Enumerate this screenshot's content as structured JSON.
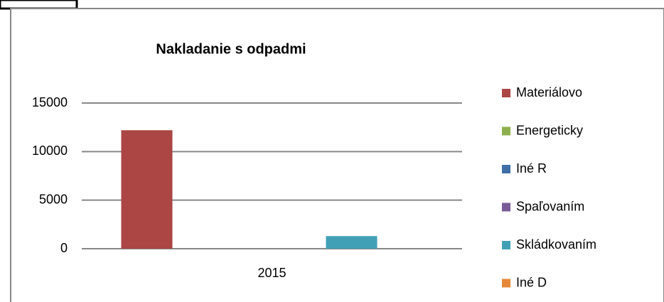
{
  "chart_data": {
    "type": "bar",
    "title": "Nakladanie s odpadmi",
    "categories": [
      "2015"
    ],
    "series": [
      {
        "name": "Materiálovo",
        "color": "#ab4644",
        "values": [
          12200
        ]
      },
      {
        "name": "Energeticky",
        "color": "#8daf4e",
        "values": [
          0
        ]
      },
      {
        "name": "Iné R",
        "color": "#3f6ea8",
        "values": [
          0
        ]
      },
      {
        "name": "Spaľovaním",
        "color": "#7a5b99",
        "values": [
          0
        ]
      },
      {
        "name": "Skládkovaním",
        "color": "#41a0b6",
        "values": [
          1300
        ]
      },
      {
        "name": "Iné D",
        "color": "#e6883a",
        "values": [
          0
        ]
      }
    ],
    "ylim": [
      0,
      15000
    ],
    "yticks": [
      0,
      5000,
      10000,
      15000
    ],
    "grid": true,
    "legend": "right"
  }
}
